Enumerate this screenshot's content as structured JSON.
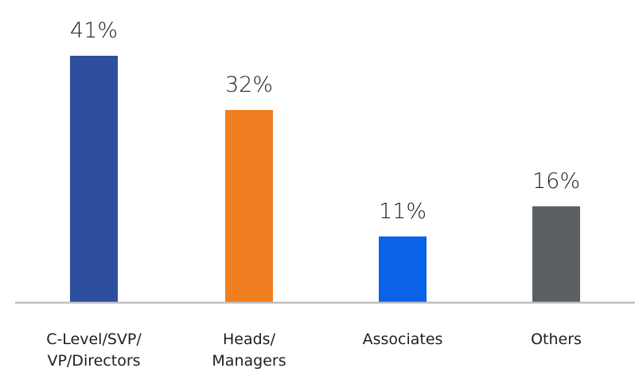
{
  "chart_data": {
    "type": "bar",
    "categories": [
      [
        "C-Level/SVP/",
        "VP/Directors"
      ],
      [
        "Heads/",
        "Managers"
      ],
      [
        "Associates"
      ],
      [
        "Others"
      ]
    ],
    "values": [
      41,
      32,
      11,
      16
    ],
    "value_labels": [
      "41%",
      "32%",
      "11%",
      "16%"
    ],
    "colors": [
      "#2e4e9f",
      "#f07f22",
      "#0a62e6",
      "#5b6163"
    ],
    "baseline_color": "#bfbfbf",
    "ylim": [
      0,
      41
    ],
    "grid": false,
    "title": "",
    "xlabel": "",
    "ylabel": ""
  }
}
